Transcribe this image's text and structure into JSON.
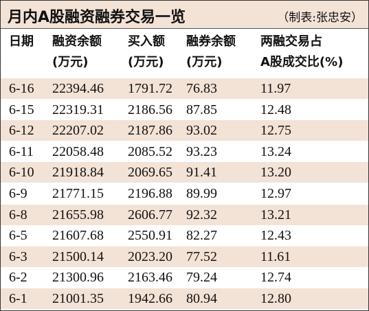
{
  "header": {
    "title": "月内A股融资融券交易一览",
    "credit": "（制表:张忠安）"
  },
  "table": {
    "columns": [
      [
        "日期"
      ],
      [
        "融资余额",
        "(万元)"
      ],
      [
        "买入额",
        "(万元)"
      ],
      [
        "融券余额",
        "(万元)"
      ],
      [
        "两融交易占",
        "A股成交比(%)"
      ]
    ],
    "rows": [
      [
        "6-16",
        "22394.46",
        "1791.72",
        "76.83",
        "11.97"
      ],
      [
        "6-15",
        "22319.31",
        "2186.56",
        "87.85",
        "12.48"
      ],
      [
        "6-12",
        "22207.02",
        "2187.86",
        "93.02",
        "12.75"
      ],
      [
        "6-11",
        "22058.48",
        "2085.52",
        "93.23",
        "13.24"
      ],
      [
        "6-10",
        "21918.84",
        "2069.65",
        "91.41",
        "13.20"
      ],
      [
        "6-9",
        "21771.15",
        "2196.88",
        "89.99",
        "12.97"
      ],
      [
        "6-8",
        "21655.98",
        "2606.77",
        "92.32",
        "13.21"
      ],
      [
        "6-5",
        "21607.68",
        "2550.91",
        "82.27",
        "12.43"
      ],
      [
        "6-3",
        "21500.14",
        "2023.20",
        "77.52",
        "11.61"
      ],
      [
        "6-2",
        "21300.96",
        "2163.46",
        "79.24",
        "12.74"
      ],
      [
        "6-1",
        "21001.35",
        "1942.66",
        "80.94",
        "12.80"
      ]
    ]
  }
}
